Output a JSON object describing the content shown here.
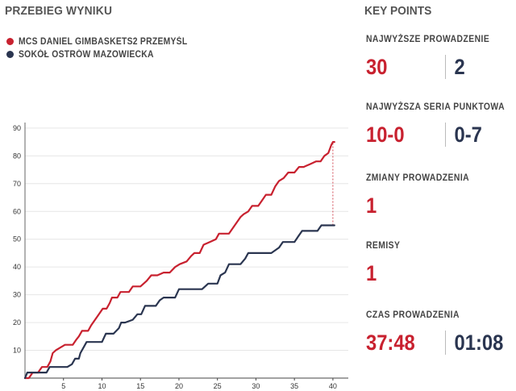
{
  "left_title": "PRZEBIEG WYNIKU",
  "legend": [
    {
      "label": "MCS DANIEL GIMBASKETS2 PRZEMYŚL",
      "color": "#c8212f"
    },
    {
      "label": "SOKÓŁ OSTRÓW MAZOWIECKA",
      "color": "#2a3550"
    }
  ],
  "key_points": {
    "title": "KEY POINTS",
    "highest_lead": {
      "label": "NAJWYŻSZE PROWADZENIE",
      "home": "30",
      "away": "2"
    },
    "longest_run": {
      "label": "NAJWYŻSZA SERIA PUNKTOWA",
      "home": "10-0",
      "away": "0-7"
    },
    "lead_changes": {
      "label": "ZMIANY PROWADZENIA",
      "value": "1"
    },
    "ties": {
      "label": "REMISY",
      "value": "1"
    },
    "time_leading": {
      "label": "CZAS PROWADZENIA",
      "home": "37:48",
      "away": "01:08"
    }
  },
  "chart_data": {
    "type": "line",
    "title": "PRZEBIEG WYNIKU",
    "xlabel": "",
    "ylabel": "",
    "xlim": [
      0,
      42
    ],
    "ylim": [
      0,
      92
    ],
    "xticks": [
      5,
      10,
      15,
      20,
      25,
      30,
      35,
      40
    ],
    "yticks": [
      10,
      20,
      30,
      40,
      50,
      60,
      70,
      80,
      90
    ],
    "series": [
      {
        "name": "MCS DANIEL GIMBASKETS2 PRZEMYŚL",
        "color": "#c8212f",
        "points": [
          [
            0,
            0
          ],
          [
            0.5,
            0
          ],
          [
            1.0,
            2
          ],
          [
            1.7,
            2
          ],
          [
            2.2,
            4
          ],
          [
            2.9,
            4
          ],
          [
            3.3,
            6
          ],
          [
            3.6,
            9
          ],
          [
            4.0,
            10
          ],
          [
            4.6,
            11
          ],
          [
            5.2,
            12
          ],
          [
            6.2,
            12
          ],
          [
            6.7,
            14
          ],
          [
            7.0,
            15
          ],
          [
            7.4,
            17
          ],
          [
            8.2,
            17
          ],
          [
            8.6,
            19
          ],
          [
            9.1,
            21
          ],
          [
            9.6,
            23
          ],
          [
            10.1,
            25
          ],
          [
            10.6,
            25
          ],
          [
            11.0,
            27
          ],
          [
            11.3,
            29
          ],
          [
            12.0,
            29
          ],
          [
            12.4,
            31
          ],
          [
            13.0,
            31
          ],
          [
            13.5,
            31
          ],
          [
            14.0,
            33
          ],
          [
            15.0,
            33
          ],
          [
            15.8,
            35
          ],
          [
            16.4,
            37
          ],
          [
            17.2,
            37
          ],
          [
            18.0,
            38
          ],
          [
            18.8,
            38
          ],
          [
            19.5,
            40
          ],
          [
            20.1,
            41
          ],
          [
            21.0,
            42
          ],
          [
            21.6,
            44
          ],
          [
            22.0,
            45
          ],
          [
            22.7,
            45
          ],
          [
            23.2,
            48
          ],
          [
            24.0,
            49
          ],
          [
            24.8,
            50
          ],
          [
            25.2,
            52
          ],
          [
            26.5,
            52
          ],
          [
            27.0,
            54
          ],
          [
            27.5,
            56
          ],
          [
            28.0,
            58
          ],
          [
            28.4,
            59
          ],
          [
            29.0,
            60
          ],
          [
            29.5,
            62
          ],
          [
            30.3,
            62
          ],
          [
            30.8,
            64
          ],
          [
            31.3,
            66
          ],
          [
            32.0,
            66
          ],
          [
            32.5,
            69
          ],
          [
            33.0,
            71
          ],
          [
            33.6,
            72
          ],
          [
            34.2,
            74
          ],
          [
            35.0,
            74
          ],
          [
            35.6,
            76
          ],
          [
            36.2,
            76
          ],
          [
            37.0,
            77
          ],
          [
            37.8,
            78
          ],
          [
            38.4,
            78
          ],
          [
            38.9,
            80
          ],
          [
            39.4,
            81
          ],
          [
            39.8,
            84
          ],
          [
            40.0,
            85
          ],
          [
            40.2,
            85
          ]
        ]
      },
      {
        "name": "SOKÓŁ OSTRÓW MAZOWIECKA",
        "color": "#2a3550",
        "points": [
          [
            0,
            0
          ],
          [
            0.3,
            2
          ],
          [
            1.2,
            2
          ],
          [
            1.7,
            2
          ],
          [
            2.8,
            2
          ],
          [
            3.2,
            4
          ],
          [
            4.0,
            4
          ],
          [
            5.0,
            4
          ],
          [
            5.5,
            4
          ],
          [
            6.1,
            5
          ],
          [
            6.5,
            7
          ],
          [
            7.0,
            7
          ],
          [
            7.2,
            9
          ],
          [
            7.6,
            11
          ],
          [
            8.0,
            13
          ],
          [
            10.0,
            13
          ],
          [
            10.5,
            16
          ],
          [
            11.5,
            16
          ],
          [
            12.2,
            18
          ],
          [
            12.5,
            20
          ],
          [
            13.0,
            20
          ],
          [
            14.0,
            21
          ],
          [
            14.6,
            23
          ],
          [
            15.1,
            23
          ],
          [
            15.6,
            26
          ],
          [
            17.0,
            26
          ],
          [
            17.5,
            28
          ],
          [
            18.0,
            29
          ],
          [
            19.5,
            29
          ],
          [
            20.0,
            32
          ],
          [
            23.0,
            32
          ],
          [
            23.8,
            34
          ],
          [
            25.0,
            34
          ],
          [
            25.4,
            37
          ],
          [
            26.0,
            38
          ],
          [
            26.5,
            41
          ],
          [
            28.0,
            41
          ],
          [
            28.6,
            43
          ],
          [
            29.0,
            45
          ],
          [
            32.0,
            45
          ],
          [
            33.0,
            47
          ],
          [
            33.5,
            49
          ],
          [
            35.0,
            49
          ],
          [
            35.5,
            51
          ],
          [
            36.0,
            53
          ],
          [
            38.0,
            53
          ],
          [
            38.5,
            55
          ],
          [
            40.2,
            55
          ]
        ]
      }
    ],
    "annotations": [
      {
        "type": "gap-line",
        "x": 40.0,
        "from": 55,
        "to": 85
      }
    ]
  }
}
